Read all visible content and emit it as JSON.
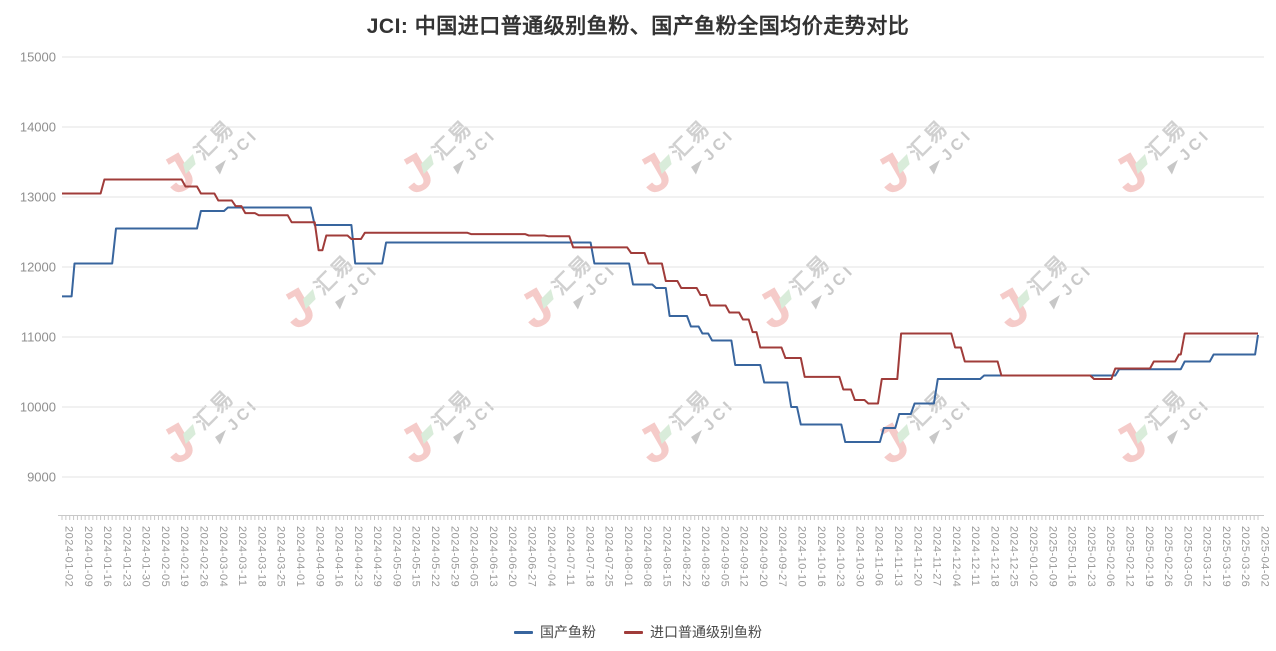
{
  "watermark": {
    "brand": "汇易",
    "abbr": "JCI"
  },
  "chart_data": {
    "type": "line",
    "title": "JCI: 中国进口普通级别鱼粉、国产鱼粉全国均价走势对比",
    "ylabel": "",
    "xlabel": "",
    "ylim": [
      9000,
      15000
    ],
    "grid": true,
    "legend_position": "bottom",
    "y_ticks": [
      15000,
      14000,
      13000,
      12000,
      11000,
      10000,
      9000
    ],
    "x_labels": [
      "2024-01-02",
      "2024-01-09",
      "2024-01-16",
      "2024-01-23",
      "2024-01-30",
      "2024-02-05",
      "2024-02-19",
      "2024-02-26",
      "2024-03-04",
      "2024-03-11",
      "2024-03-18",
      "2024-03-25",
      "2024-04-01",
      "2024-04-09",
      "2024-04-16",
      "2024-04-23",
      "2024-04-29",
      "2024-05-09",
      "2024-05-15",
      "2024-05-22",
      "2024-05-29",
      "2024-06-05",
      "2024-06-13",
      "2024-06-20",
      "2024-06-27",
      "2024-07-04",
      "2024-07-11",
      "2024-07-18",
      "2024-07-25",
      "2024-08-01",
      "2024-08-08",
      "2024-08-15",
      "2024-08-22",
      "2024-08-29",
      "2024-09-05",
      "2024-09-12",
      "2024-09-20",
      "2024-09-27",
      "2024-10-10",
      "2024-10-16",
      "2024-10-23",
      "2024-10-30",
      "2024-11-06",
      "2024-11-13",
      "2024-11-20",
      "2024-11-27",
      "2024-12-04",
      "2024-12-11",
      "2024-12-18",
      "2024-12-25",
      "2025-01-02",
      "2025-01-09",
      "2025-01-16",
      "2025-01-23",
      "2025-02-06",
      "2025-02-12",
      "2025-02-19",
      "2025-02-26",
      "2025-03-05",
      "2025-03-12",
      "2025-03-19",
      "2025-03-26",
      "2025-04-02"
    ],
    "x_unit": "label_index_with_fractional_steps",
    "series": [
      {
        "name": "国产鱼粉",
        "color": "#38659E",
        "points": [
          [
            0,
            11580
          ],
          [
            0.5,
            11580
          ],
          [
            0.65,
            12050
          ],
          [
            2.6,
            12050
          ],
          [
            2.8,
            12550
          ],
          [
            7.0,
            12550
          ],
          [
            7.2,
            12800
          ],
          [
            8.4,
            12800
          ],
          [
            8.6,
            12850
          ],
          [
            12.9,
            12850
          ],
          [
            13.1,
            12600
          ],
          [
            15.0,
            12600
          ],
          [
            15.2,
            12050
          ],
          [
            16.6,
            12050
          ],
          [
            16.8,
            12350
          ],
          [
            27.4,
            12350
          ],
          [
            27.6,
            12050
          ],
          [
            29.4,
            12050
          ],
          [
            29.6,
            11750
          ],
          [
            30.6,
            11750
          ],
          [
            30.8,
            11700
          ],
          [
            31.3,
            11700
          ],
          [
            31.5,
            11300
          ],
          [
            32.4,
            11300
          ],
          [
            32.6,
            11150
          ],
          [
            33.0,
            11150
          ],
          [
            33.2,
            11050
          ],
          [
            33.5,
            11050
          ],
          [
            33.7,
            10950
          ],
          [
            34.7,
            10950
          ],
          [
            34.9,
            10600
          ],
          [
            36.2,
            10600
          ],
          [
            36.4,
            10350
          ],
          [
            37.6,
            10350
          ],
          [
            37.8,
            10000
          ],
          [
            38.1,
            10000
          ],
          [
            38.3,
            9750
          ],
          [
            40.4,
            9750
          ],
          [
            40.6,
            9500
          ],
          [
            42.4,
            9500
          ],
          [
            42.6,
            9700
          ],
          [
            43.2,
            9700
          ],
          [
            43.4,
            9900
          ],
          [
            44.0,
            9900
          ],
          [
            44.2,
            10050
          ],
          [
            45.2,
            10050
          ],
          [
            45.4,
            10400
          ],
          [
            47.6,
            10400
          ],
          [
            47.8,
            10450
          ],
          [
            54.6,
            10450
          ],
          [
            54.8,
            10540
          ],
          [
            58.0,
            10540
          ],
          [
            58.2,
            10650
          ],
          [
            59.5,
            10650
          ],
          [
            59.7,
            10750
          ],
          [
            61.85,
            10750
          ],
          [
            62,
            11030
          ]
        ]
      },
      {
        "name": "进口普通级别鱼粉",
        "color": "#A03C3A",
        "points": [
          [
            0,
            13050
          ],
          [
            2.0,
            13050
          ],
          [
            2.2,
            13250
          ],
          [
            6.2,
            13250
          ],
          [
            6.4,
            13150
          ],
          [
            7.0,
            13150
          ],
          [
            7.2,
            13050
          ],
          [
            7.9,
            13050
          ],
          [
            8.1,
            12950
          ],
          [
            8.8,
            12950
          ],
          [
            9.0,
            12870
          ],
          [
            9.3,
            12870
          ],
          [
            9.5,
            12770
          ],
          [
            10.0,
            12770
          ],
          [
            10.2,
            12740
          ],
          [
            11.7,
            12740
          ],
          [
            11.9,
            12640
          ],
          [
            13.1,
            12640
          ],
          [
            13.3,
            12240
          ],
          [
            13.5,
            12240
          ],
          [
            13.7,
            12450
          ],
          [
            14.8,
            12450
          ],
          [
            15.0,
            12400
          ],
          [
            15.5,
            12400
          ],
          [
            15.7,
            12490
          ],
          [
            21.0,
            12490
          ],
          [
            21.2,
            12470
          ],
          [
            24.0,
            12470
          ],
          [
            24.2,
            12450
          ],
          [
            25.0,
            12450
          ],
          [
            25.2,
            12440
          ],
          [
            26.3,
            12440
          ],
          [
            26.5,
            12280
          ],
          [
            29.3,
            12280
          ],
          [
            29.5,
            12200
          ],
          [
            30.2,
            12200
          ],
          [
            30.4,
            12050
          ],
          [
            31.1,
            12050
          ],
          [
            31.3,
            11800
          ],
          [
            31.9,
            11800
          ],
          [
            32.1,
            11700
          ],
          [
            32.9,
            11700
          ],
          [
            33.1,
            11600
          ],
          [
            33.4,
            11600
          ],
          [
            33.6,
            11450
          ],
          [
            34.4,
            11450
          ],
          [
            34.6,
            11350
          ],
          [
            35.1,
            11350
          ],
          [
            35.3,
            11250
          ],
          [
            35.6,
            11250
          ],
          [
            35.8,
            11070
          ],
          [
            36.0,
            11070
          ],
          [
            36.2,
            10850
          ],
          [
            37.3,
            10850
          ],
          [
            37.5,
            10700
          ],
          [
            38.3,
            10700
          ],
          [
            38.5,
            10430
          ],
          [
            40.3,
            10430
          ],
          [
            40.5,
            10250
          ],
          [
            40.9,
            10250
          ],
          [
            41.1,
            10100
          ],
          [
            41.6,
            10100
          ],
          [
            41.8,
            10050
          ],
          [
            42.3,
            10050
          ],
          [
            42.5,
            10400
          ],
          [
            43.3,
            10400
          ],
          [
            43.5,
            11050
          ],
          [
            46.1,
            11050
          ],
          [
            46.3,
            10850
          ],
          [
            46.6,
            10850
          ],
          [
            46.8,
            10650
          ],
          [
            48.5,
            10650
          ],
          [
            48.7,
            10450
          ],
          [
            53.3,
            10450
          ],
          [
            53.5,
            10400
          ],
          [
            54.4,
            10400
          ],
          [
            54.6,
            10550
          ],
          [
            56.4,
            10550
          ],
          [
            56.6,
            10650
          ],
          [
            57.7,
            10650
          ],
          [
            57.9,
            10750
          ],
          [
            58.0,
            10750
          ],
          [
            58.2,
            11050
          ],
          [
            62,
            11050
          ]
        ]
      }
    ],
    "colors": {
      "grid": "#e3e3e3",
      "axis": "#c8c8c8",
      "axis_label": "#9a9a9a",
      "title": "#333333",
      "watermark_pink": "#f5cbc9",
      "watermark_gray": "#d0d0d0",
      "watermark_green": "#d9ecda"
    }
  }
}
